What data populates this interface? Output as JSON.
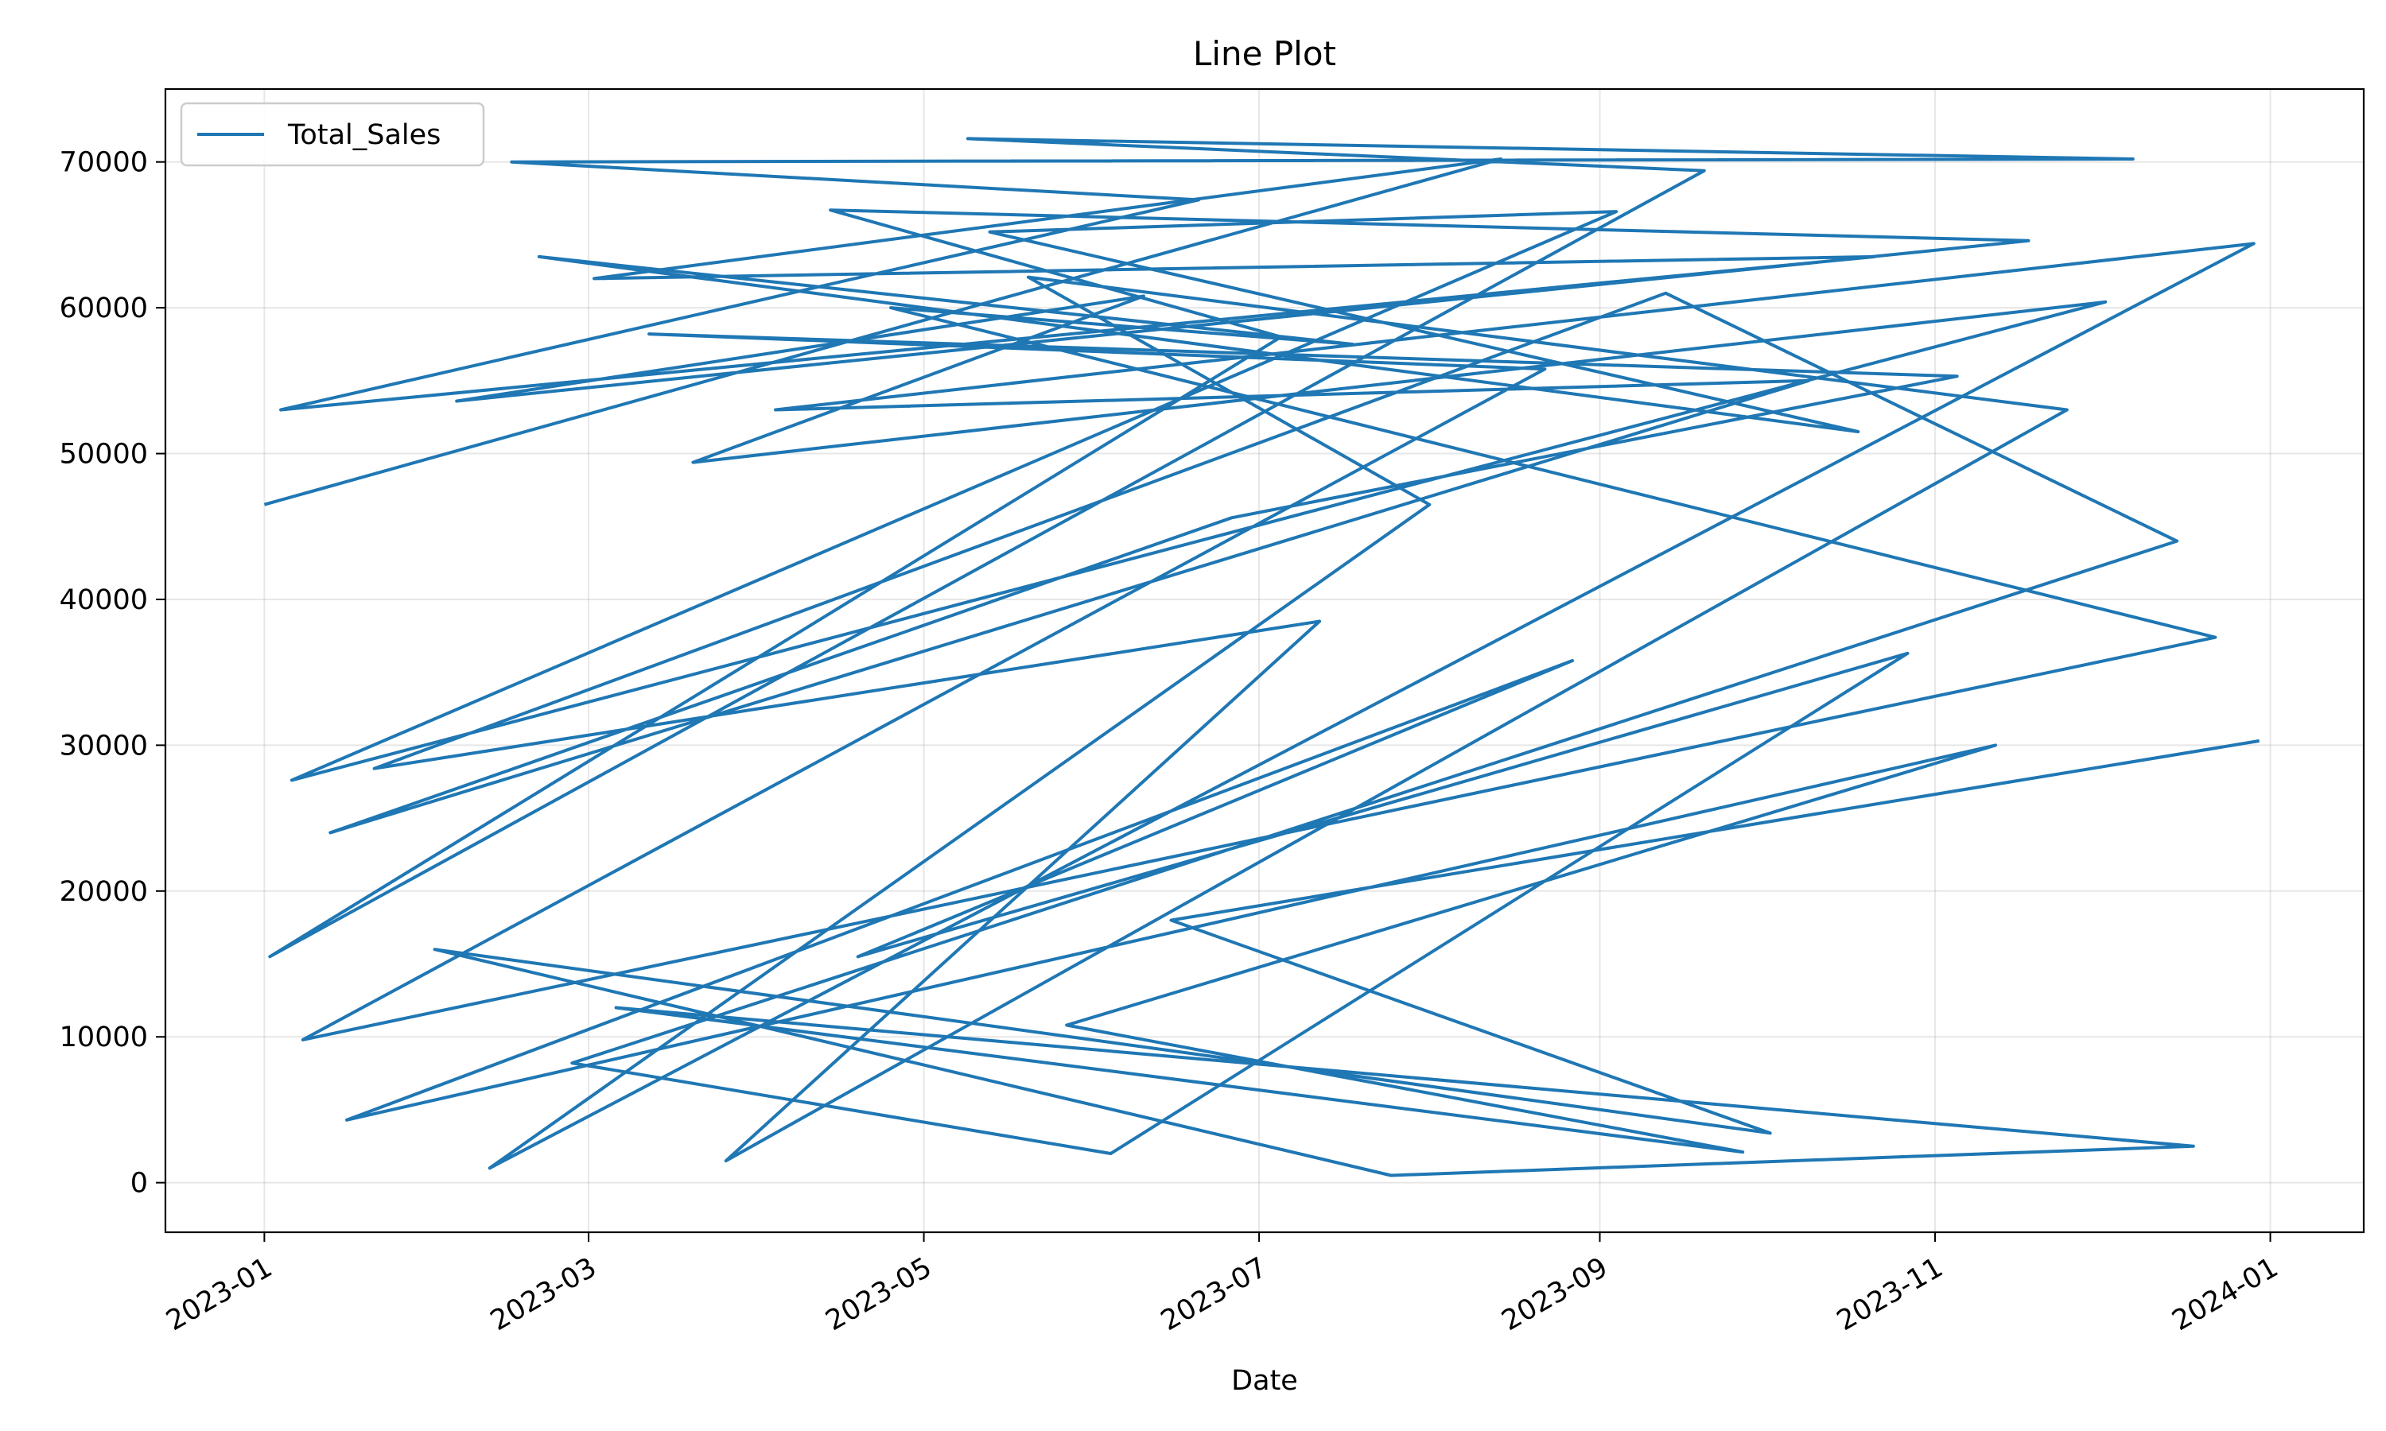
{
  "chart_data": {
    "type": "line",
    "title": "Line Plot",
    "xlabel": "Date",
    "ylabel": "",
    "x_axis_type": "date",
    "xlim": [
      "2022-12-14",
      "2024-01-18"
    ],
    "ylim": [
      -3400,
      75000
    ],
    "x_ticks": [
      "2023-01",
      "2023-03",
      "2023-05",
      "2023-07",
      "2023-09",
      "2023-11",
      "2024-01"
    ],
    "x_tick_labels": [
      "2023-01",
      "2023-03",
      "2023-05",
      "2023-07",
      "2023-09",
      "2023-11",
      "2024-01"
    ],
    "y_ticks": [
      0,
      10000,
      20000,
      30000,
      40000,
      50000,
      60000,
      70000
    ],
    "y_tick_labels": [
      "0",
      "10000",
      "20000",
      "30000",
      "40000",
      "50000",
      "60000",
      "70000"
    ],
    "grid": true,
    "legend": "top-left",
    "series": [
      {
        "name": "Total_Sales",
        "color": "#1f77b4",
        "x": [
          "2023-01-01",
          "2023-08-14",
          "2023-03-02",
          "2023-10-21",
          "2023-01-04",
          "2023-06-20",
          "2023-02-15",
          "2023-12-07",
          "2023-05-09",
          "2023-09-20",
          "2023-01-02",
          "2023-07-05",
          "2023-04-14",
          "2023-11-18",
          "2023-02-05",
          "2023-06-10",
          "2023-03-20",
          "2023-12-02",
          "2023-01-06",
          "2023-09-04",
          "2023-05-13",
          "2023-10-18",
          "2023-02-20",
          "2023-07-18",
          "2023-04-25",
          "2023-12-22",
          "2023-01-08",
          "2023-08-22",
          "2023-03-12",
          "2023-11-05",
          "2023-06-26",
          "2023-01-13",
          "2023-10-09",
          "2023-04-04",
          "2023-12-29",
          "2023-02-11",
          "2023-08-01",
          "2023-05-20",
          "2023-11-25",
          "2023-03-26",
          "2023-07-12",
          "2023-01-21",
          "2023-09-13",
          "2023-12-15",
          "2023-02-26",
          "2023-06-04",
          "2023-10-27",
          "2023-04-19",
          "2023-08-27",
          "2023-01-16",
          "2023-11-12",
          "2023-05-27",
          "2023-09-27",
          "2023-03-06",
          "2023-12-18",
          "2023-07-25",
          "2023-02-01",
          "2023-10-02",
          "2023-06-15",
          "2023-12-30"
        ],
        "values": [
          46500,
          70200,
          62000,
          63500,
          53000,
          67400,
          70000,
          70200,
          71600,
          69400,
          15500,
          58000,
          66700,
          64600,
          53600,
          60800,
          49400,
          60400,
          27600,
          66600,
          65200,
          51500,
          63500,
          57500,
          60000,
          37400,
          9800,
          55800,
          58200,
          55300,
          45600,
          24000,
          55000,
          53000,
          64400,
          1000,
          46500,
          62100,
          53000,
          1500,
          38500,
          28400,
          61000,
          44000,
          8200,
          2000,
          36300,
          15500,
          35800,
          4300,
          30000,
          10800,
          2100,
          12000,
          2500,
          500,
          16000,
          3400,
          18000,
          30300
        ]
      }
    ]
  }
}
